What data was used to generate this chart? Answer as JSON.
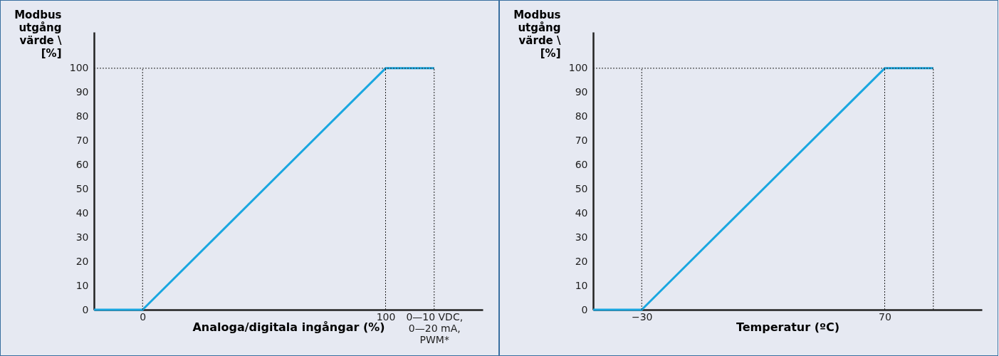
{
  "chart_data": [
    {
      "type": "line",
      "xlabel": "Analoga/digitala ingångar (%)",
      "ylabel": "Modbus utgång värde \\ [%]",
      "x": [
        -20,
        0,
        100,
        120
      ],
      "series": [
        {
          "color": "#1aa7e0",
          "values": [
            0,
            0,
            100,
            100
          ]
        }
      ],
      "xlim": [
        -20,
        140
      ],
      "xticks": [
        0,
        100,
        {
          "value": 120,
          "label": "0—10 VDC, 0—20 mA, PWM*"
        }
      ],
      "ylim": [
        0,
        115
      ],
      "yticks": [
        0,
        10,
        20,
        30,
        40,
        50,
        60,
        70,
        80,
        90,
        100
      ],
      "ref_lines": [
        {
          "axis": "x",
          "value": 0,
          "line_style": "dotted"
        },
        {
          "axis": "x",
          "value": 100,
          "line_style": "dotted"
        },
        {
          "axis": "x",
          "value": 120,
          "line_style": "dotted"
        },
        {
          "axis": "y",
          "value": 100,
          "line_style": "dotted"
        }
      ],
      "grid": false
    },
    {
      "type": "line",
      "xlabel": "Temperatur (ºC)",
      "ylabel": "Modbus utgång värde \\ [%]",
      "x": [
        -50,
        -30,
        70,
        90
      ],
      "series": [
        {
          "color": "#1aa7e0",
          "values": [
            0,
            0,
            100,
            100
          ]
        }
      ],
      "xlim": [
        -50,
        110
      ],
      "xticks": [
        -30,
        70
      ],
      "ylim": [
        0,
        115
      ],
      "yticks": [
        0,
        10,
        20,
        30,
        40,
        50,
        60,
        70,
        80,
        90,
        100
      ],
      "ref_lines": [
        {
          "axis": "x",
          "value": -30,
          "line_style": "dotted"
        },
        {
          "axis": "x",
          "value": 70,
          "line_style": "dotted"
        },
        {
          "axis": "x",
          "value": 90,
          "line_style": "dotted"
        },
        {
          "axis": "y",
          "value": 100,
          "line_style": "dotted"
        }
      ],
      "grid": false
    }
  ]
}
